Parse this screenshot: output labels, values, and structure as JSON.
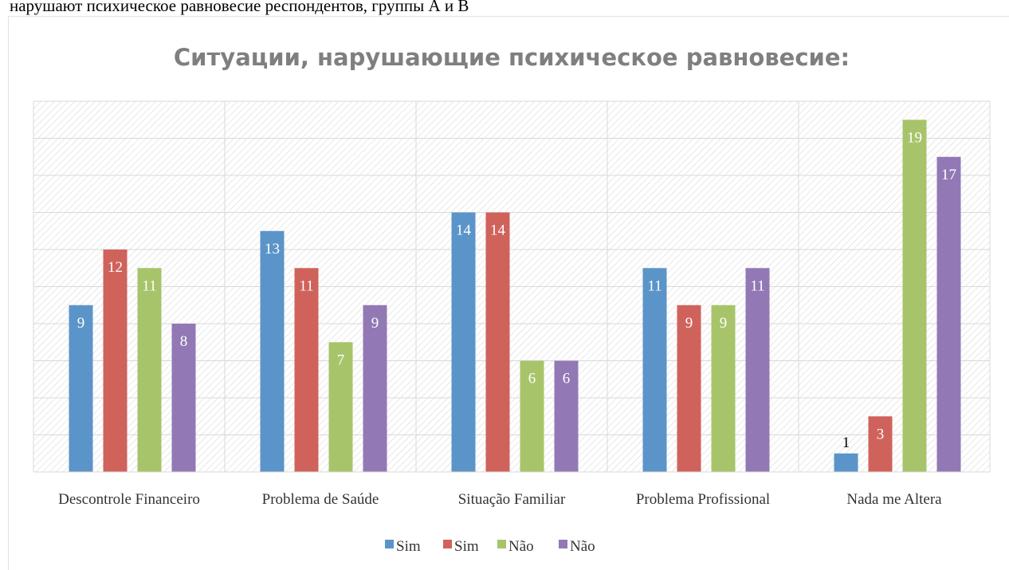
{
  "caption": "нарушают психическое равновесие респондентов, группы А и В",
  "chart_data": {
    "type": "bar",
    "title": "Ситуации, нарушающие психическое равновесие:",
    "categories": [
      "Descontrole Financeiro",
      "Problema de Saúde",
      "Situação Familiar",
      "Problema Profissional",
      "Nada me Altera"
    ],
    "series": [
      {
        "name": "Sim",
        "color": "#5b94c9",
        "values": [
          9,
          13,
          14,
          11,
          1
        ]
      },
      {
        "name": "Sim",
        "color": "#d0625c",
        "values": [
          12,
          11,
          14,
          9,
          3
        ]
      },
      {
        "name": "Não",
        "color": "#a8c46a",
        "values": [
          11,
          7,
          6,
          9,
          19
        ]
      },
      {
        "name": "Não",
        "color": "#9279b5",
        "values": [
          8,
          9,
          6,
          11,
          17
        ]
      }
    ],
    "ylim": [
      0,
      20
    ],
    "yticks": [
      0,
      2,
      4,
      6,
      8,
      10,
      12,
      14,
      16,
      18,
      20
    ],
    "grid": true,
    "legend": "bottom"
  }
}
